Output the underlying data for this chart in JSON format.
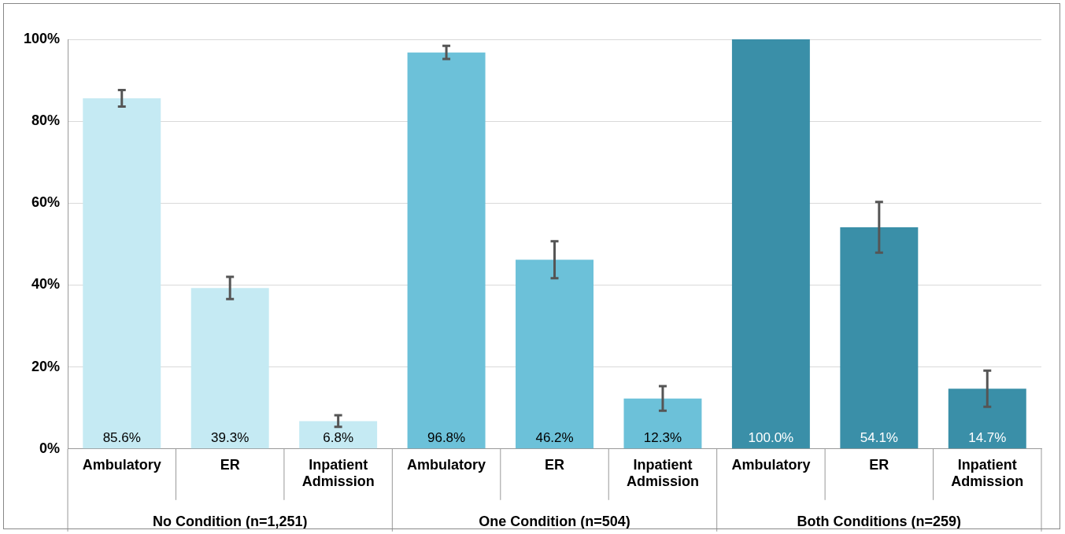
{
  "chart_data": {
    "type": "bar",
    "categories": [
      "Ambulatory",
      "ER",
      "Inpatient Admission",
      "Ambulatory",
      "ER",
      "Inpatient Admission",
      "Ambulatory",
      "ER",
      "Inpatient Admission"
    ],
    "values": [
      85.6,
      39.3,
      6.8,
      96.8,
      46.2,
      12.3,
      100.0,
      54.1,
      14.7
    ],
    "errors": [
      2.0,
      2.7,
      1.4,
      1.6,
      4.5,
      3.0,
      null,
      6.2,
      4.4
    ],
    "colors": [
      "#c5eaf3",
      "#c5eaf3",
      "#c5eaf3",
      "#6cc1d9",
      "#6cc1d9",
      "#6cc1d9",
      "#3a8fa8",
      "#3a8fa8",
      "#3a8fa8"
    ],
    "value_labels": [
      "85.6%",
      "39.3%",
      "6.8%",
      "96.8%",
      "46.2%",
      "12.3%",
      "100.0%",
      "54.1%",
      "14.7%"
    ],
    "ylim": [
      0,
      100
    ],
    "yticks": [
      {
        "value": 0,
        "label": "0%"
      },
      {
        "value": 20,
        "label": "20%"
      },
      {
        "value": 40,
        "label": "40%"
      },
      {
        "value": 60,
        "label": "60%"
      },
      {
        "value": 80,
        "label": "80%"
      },
      {
        "value": 100,
        "label": "100%"
      }
    ],
    "grid": "y",
    "legend": false,
    "annotations": [
      "No Condition (n=1,251)",
      "One Condition (n=504)",
      "Both Conditions (n=259)"
    ]
  }
}
